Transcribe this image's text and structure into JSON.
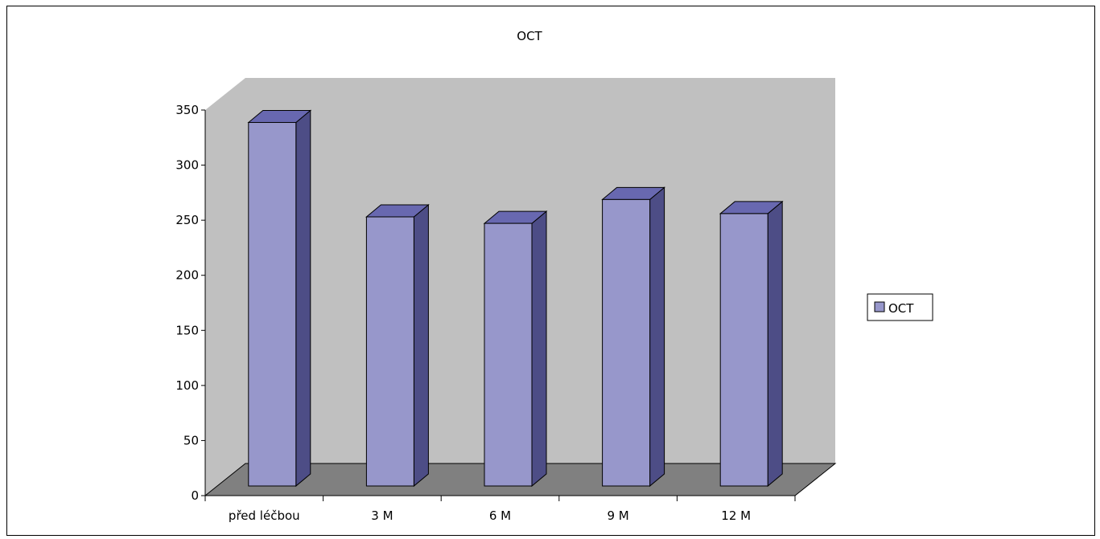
{
  "chart_data": {
    "type": "bar",
    "title": "OCT",
    "xlabel": "",
    "ylabel": "",
    "categories": [
      "před léčbou",
      "3 M",
      "6 M",
      "9 M",
      "12 M"
    ],
    "series": [
      {
        "name": "OCT",
        "values": [
          335,
          248,
          242,
          264,
          251
        ]
      }
    ],
    "ylim": [
      0,
      350
    ],
    "y_ticks": [
      "0",
      "50",
      "100",
      "150",
      "200",
      "250",
      "300",
      "350"
    ],
    "three_d": true,
    "grid": false,
    "legend_position": "right",
    "colors": {
      "bar_front": "#9797cb",
      "bar_top": "#6868b0",
      "bar_side": "#4d4d86",
      "wall": "#c0c0c0",
      "floor": "#808080"
    }
  }
}
